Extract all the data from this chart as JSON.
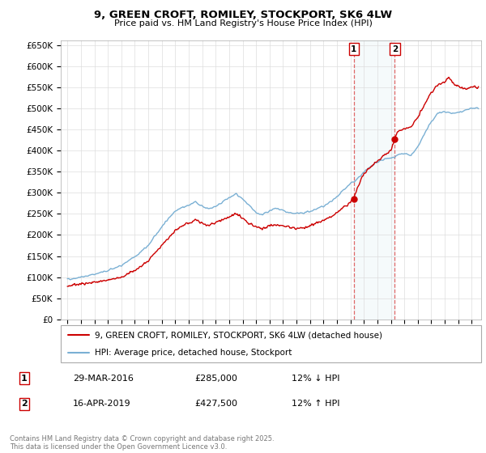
{
  "title": "9, GREEN CROFT, ROMILEY, STOCKPORT, SK6 4LW",
  "subtitle": "Price paid vs. HM Land Registry's House Price Index (HPI)",
  "legend_line1": "9, GREEN CROFT, ROMILEY, STOCKPORT, SK6 4LW (detached house)",
  "legend_line2": "HPI: Average price, detached house, Stockport",
  "transaction1_date": "29-MAR-2016",
  "transaction1_price": "£285,000",
  "transaction1_hpi": "12% ↓ HPI",
  "transaction2_date": "16-APR-2019",
  "transaction2_price": "£427,500",
  "transaction2_hpi": "12% ↑ HPI",
  "footer": "Contains HM Land Registry data © Crown copyright and database right 2025.\nThis data is licensed under the Open Government Licence v3.0.",
  "red_line_color": "#cc0000",
  "blue_line_color": "#7ab0d4",
  "marker1_x": 2016.25,
  "marker1_y": 285000,
  "marker2_x": 2019.29,
  "marker2_y": 427500,
  "vline1_x": 2016.25,
  "vline2_x": 2019.29,
  "ylim": [
    0,
    660000
  ],
  "yticks": [
    0,
    50000,
    100000,
    150000,
    200000,
    250000,
    300000,
    350000,
    400000,
    450000,
    500000,
    550000,
    600000,
    650000
  ],
  "xlim_start": 1994.5,
  "xlim_end": 2025.7
}
